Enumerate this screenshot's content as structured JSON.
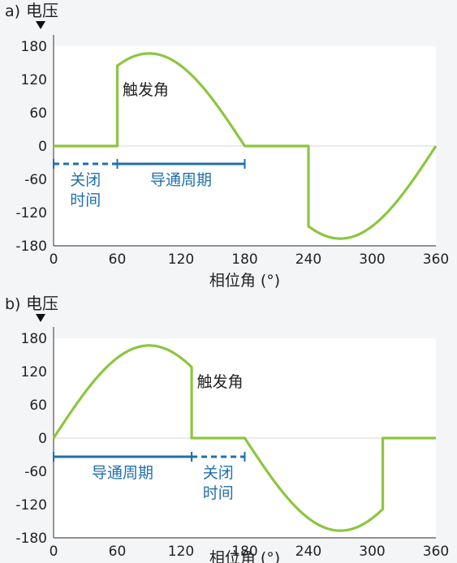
{
  "colors": {
    "background": "#f4f5f7",
    "plot_bg": "#ffffff",
    "curve": "#8cc63f",
    "annotation_blue": "#1f6fad",
    "axis": "#555555",
    "grid": "#e1e3e6",
    "text": "#222222"
  },
  "chart_data": [
    {
      "panel": "a)",
      "type": "line",
      "ylabel": "电压",
      "xlabel": "相位角 (°)",
      "xlim": [
        0,
        360
      ],
      "ylim": [
        -180,
        180
      ],
      "xticks": [
        0,
        60,
        120,
        180,
        240,
        300,
        360
      ],
      "yticks": [
        180,
        120,
        60,
        0,
        -60,
        -120,
        -180
      ],
      "grid": "horizontal at 0",
      "series": [
        {
          "points": [
            [
              0,
              0
            ],
            [
              60,
              0
            ],
            [
              60,
              145
            ],
            [
              90,
              167
            ],
            [
              180,
              0
            ],
            [
              240,
              0
            ],
            [
              240,
              -145
            ],
            [
              270,
              -167
            ],
            [
              360,
              0
            ]
          ]
        }
      ],
      "annotations": [
        {
          "text": "触发角",
          "x": 65,
          "y": 92
        }
      ],
      "intervals": [
        {
          "label": "关闭\n时间",
          "label_lines": [
            "关闭",
            "时间"
          ],
          "x0": 0,
          "x1": 60,
          "style": "dashed"
        },
        {
          "label": "导通周期",
          "label_lines": [
            "导通周期"
          ],
          "x0": 60,
          "x1": 180,
          "style": "solid"
        }
      ]
    },
    {
      "panel": "b)",
      "type": "line",
      "ylabel": "电压",
      "xlabel": "相位角 (°)",
      "xlim": [
        0,
        360
      ],
      "ylim": [
        -180,
        180
      ],
      "xticks": [
        0,
        60,
        120,
        180,
        240,
        300,
        360
      ],
      "yticks": [
        180,
        120,
        60,
        0,
        -60,
        -120,
        -180
      ],
      "grid": "horizontal at 0",
      "series": [
        {
          "points": [
            [
              0,
              0
            ],
            [
              90,
              167
            ],
            [
              130,
              128
            ],
            [
              130,
              0
            ],
            [
              180,
              0
            ],
            [
              270,
              -167
            ],
            [
              310,
              -128
            ],
            [
              310,
              0
            ],
            [
              360,
              0
            ]
          ]
        }
      ],
      "annotations": [
        {
          "text": "触发角",
          "x": 135,
          "y": 92
        }
      ],
      "intervals": [
        {
          "label": "导通周期",
          "label_lines": [
            "导通周期"
          ],
          "x0": 0,
          "x1": 130,
          "style": "solid"
        },
        {
          "label": "关闭\n时间",
          "label_lines": [
            "关闭",
            "时间"
          ],
          "x0": 130,
          "x1": 180,
          "style": "dashed"
        }
      ]
    }
  ]
}
